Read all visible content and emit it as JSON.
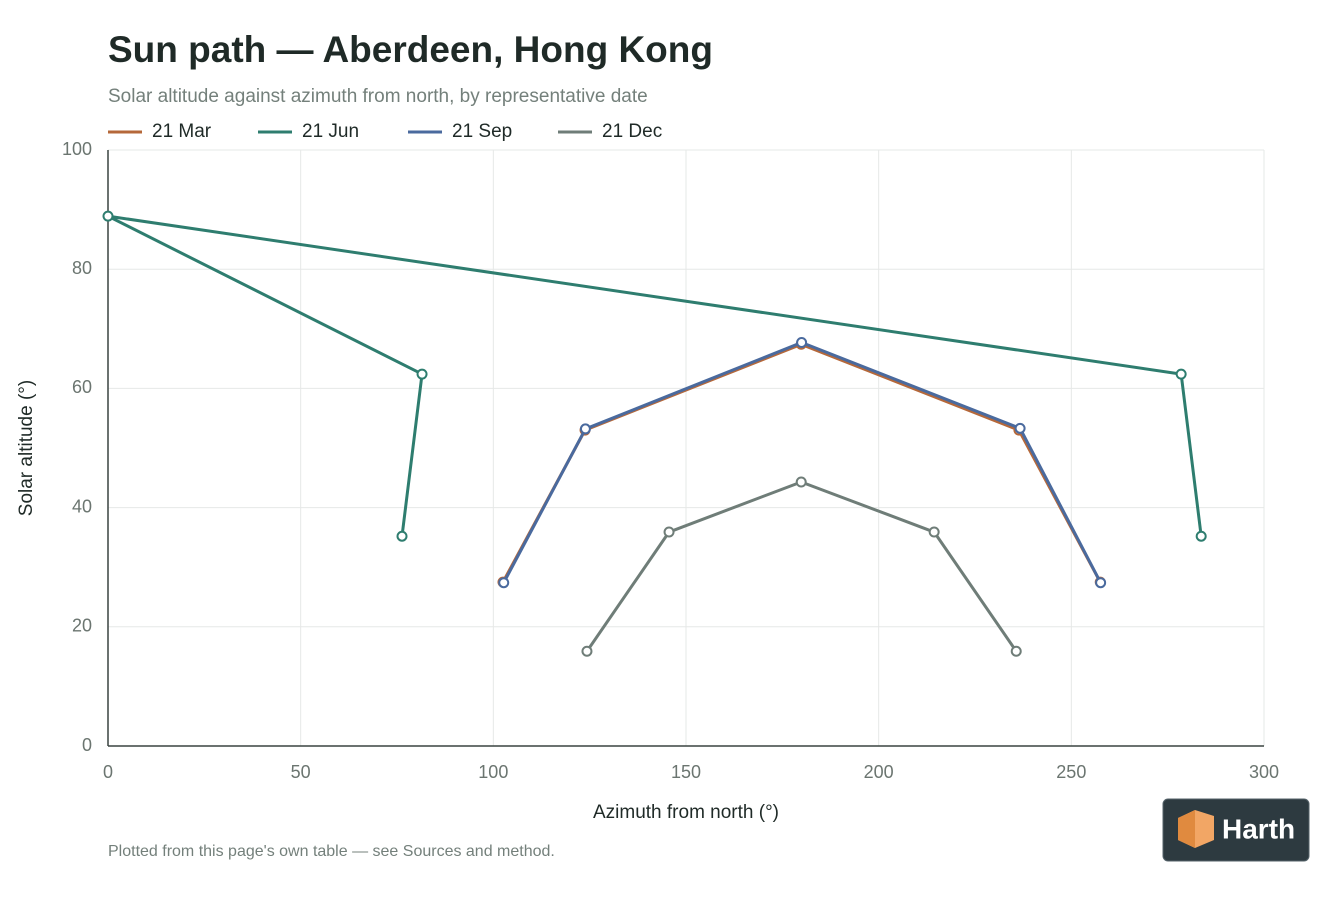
{
  "chart_data": {
    "type": "line",
    "title": "Sun path — Aberdeen, Hong Kong",
    "subtitle": "Solar altitude against azimuth from north, by representative date",
    "x_label": "Azimuth from north (°)",
    "y_label": "Solar altitude (°)",
    "xlim": [
      0,
      300
    ],
    "xticks": [
      0,
      50,
      100,
      150,
      200,
      250,
      300
    ],
    "ylim": [
      0,
      100
    ],
    "yticks": [
      0,
      20,
      40,
      60,
      80,
      100
    ],
    "grid": true,
    "legend": "top-left",
    "series": [
      {
        "name": "21 Mar",
        "color": "#b5683a",
        "x": [
          102.5,
          123.8,
          179.9,
          236.4,
          257.5
        ],
        "values": [
          27.5,
          53.0,
          67.4,
          53.0,
          27.5
        ]
      },
      {
        "name": "21 Jun",
        "color": "#2e7d6f",
        "x": [
          76.3,
          81.5,
          0,
          278.5,
          283.7
        ],
        "values": [
          35.2,
          62.4,
          88.9,
          62.4,
          35.2
        ]
      },
      {
        "name": "21 Sep",
        "color": "#4a6a9e",
        "x": [
          102.7,
          123.9,
          180.0,
          236.7,
          257.6
        ],
        "values": [
          27.4,
          53.2,
          67.7,
          53.3,
          27.4
        ]
      },
      {
        "name": "21 Dec",
        "color": "#6f7d78",
        "x": [
          124.3,
          145.6,
          179.9,
          214.4,
          235.7
        ],
        "values": [
          15.9,
          35.9,
          44.3,
          35.9,
          15.9
        ]
      }
    ]
  },
  "note": "Plotted from this page's own table — see Sources and method.",
  "brand": "Harth"
}
